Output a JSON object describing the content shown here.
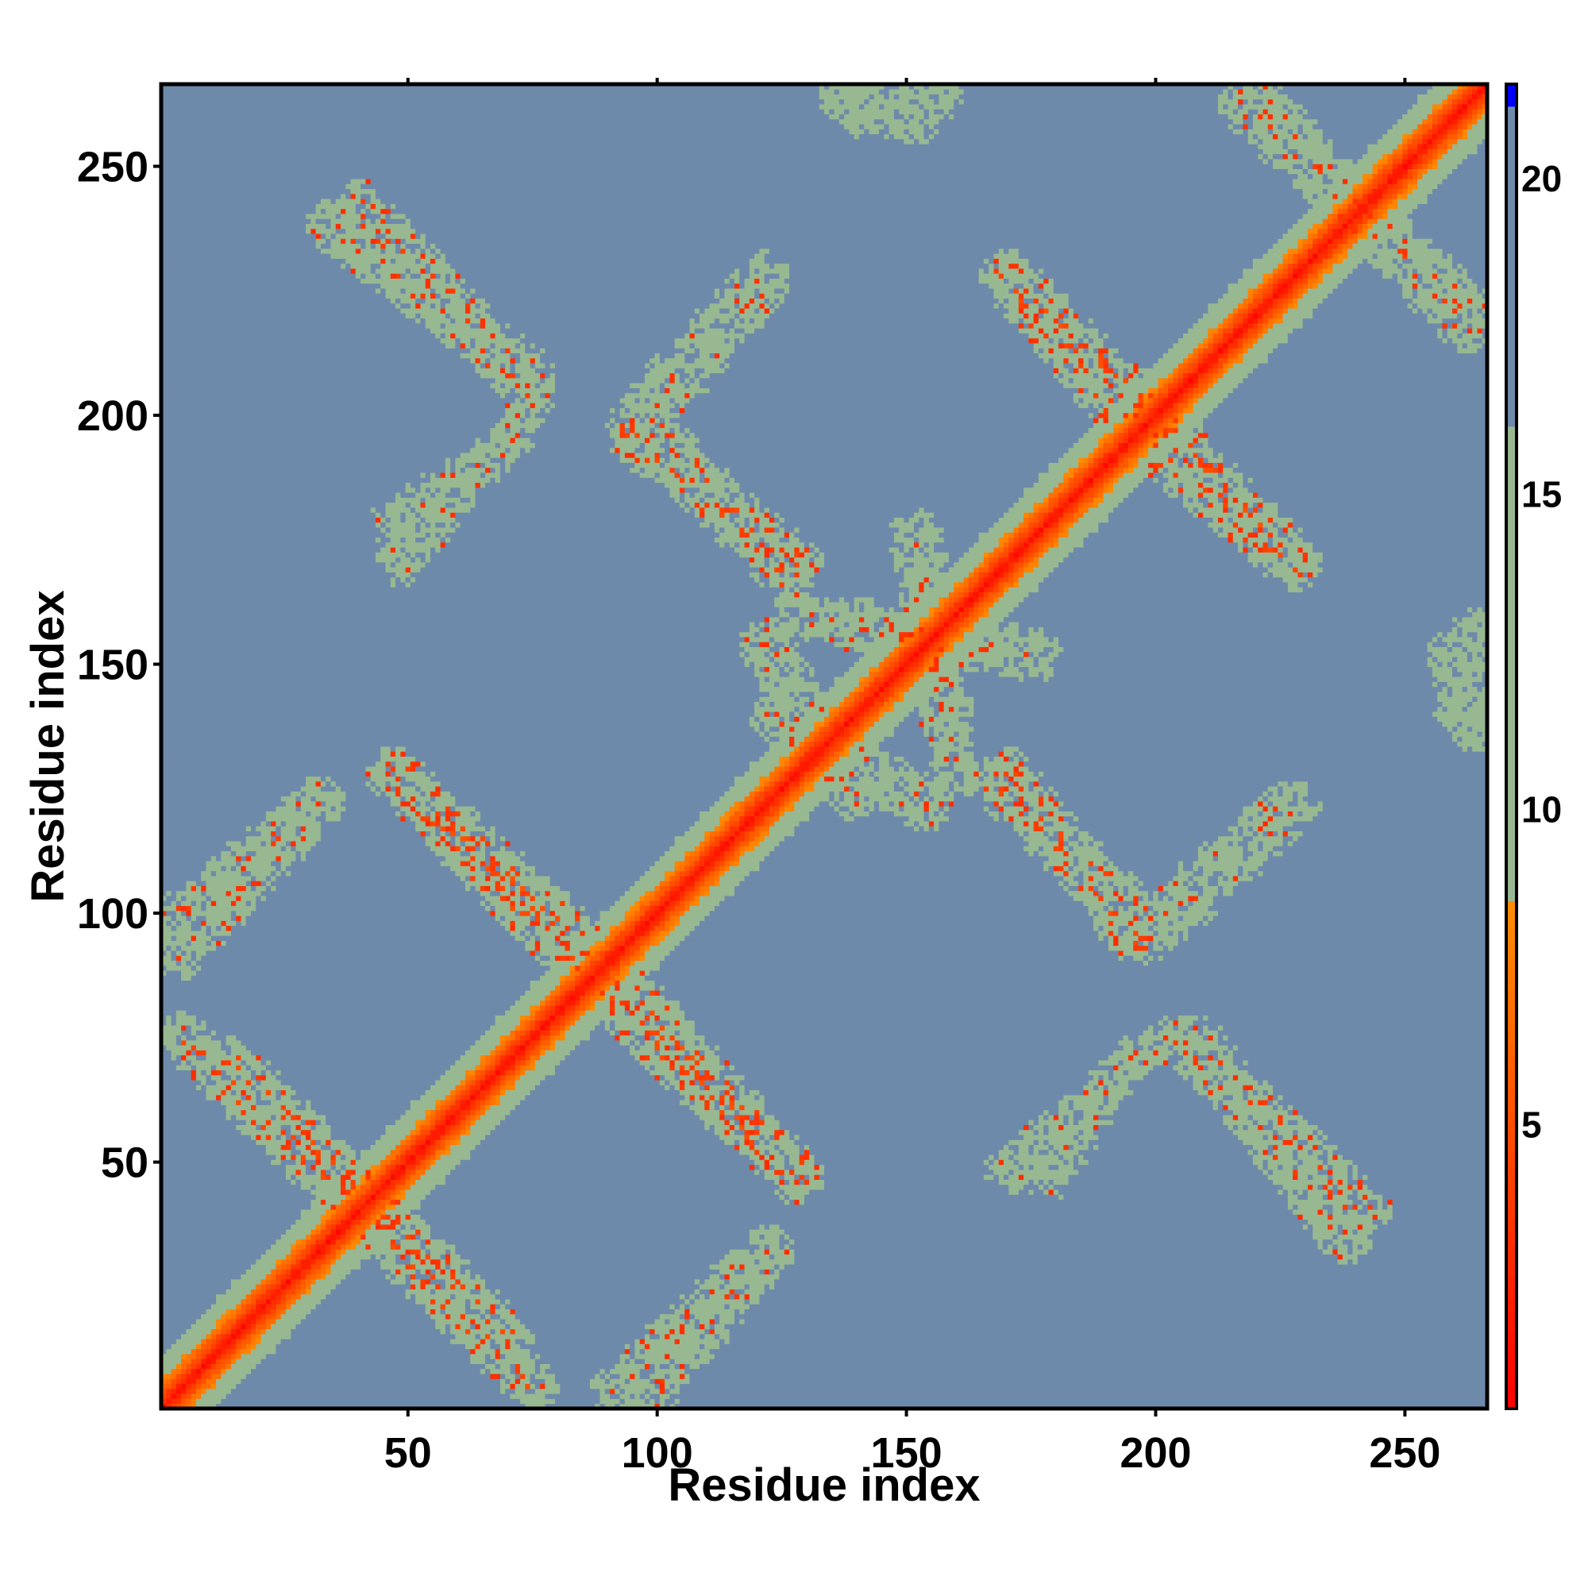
{
  "chart_data": {
    "type": "heatmap",
    "title": "",
    "xlabel": "Residue index",
    "ylabel": "Residue index",
    "xlim": [
      1,
      266
    ],
    "ylim": [
      1,
      266
    ],
    "x_ticks": [
      "50",
      "100",
      "150",
      "200",
      "250"
    ],
    "y_ticks": [
      "50",
      "100",
      "150",
      "200",
      "250"
    ],
    "colorbar": {
      "range": [
        0.5,
        21.5
      ],
      "ticks": [
        "5",
        "10",
        "15",
        "20"
      ],
      "colors": {
        "red": "#ff0000",
        "orange": "#ff8c00",
        "sage": "#98b892",
        "steel": "#6e8aaa",
        "blue": "#0000ff"
      },
      "bands": [
        {
          "from": 0.5,
          "to": 8.5,
          "scale": "red-to-orange"
        },
        {
          "from": 8.5,
          "to": 16.0,
          "scale": "sage"
        },
        {
          "from": 16.0,
          "to": 21.2,
          "scale": "steel"
        },
        {
          "from": 21.2,
          "to": 21.5,
          "scale": "blue"
        }
      ]
    },
    "background_value": 21,
    "diagonal": {
      "core_value": 1.5,
      "half_width": 12
    },
    "bands": [
      {
        "x1": 5,
        "y1": 75,
        "x2": 35,
        "y2": 45,
        "value": 11,
        "hot": 0.28
      },
      {
        "x1": 40,
        "y1": 45,
        "x2": 70,
        "y2": 15,
        "value": 10.5,
        "hot": 0.25
      },
      {
        "x1": 50,
        "y1": 125,
        "x2": 82,
        "y2": 92,
        "value": 10.5,
        "hot": 0.32
      },
      {
        "x1": 95,
        "y1": 84,
        "x2": 128,
        "y2": 47,
        "value": 10.5,
        "hot": 0.32
      },
      {
        "x1": 2,
        "y1": 97,
        "x2": 32,
        "y2": 122,
        "value": 12,
        "hot": 0.12
      },
      {
        "x1": 92,
        "y1": 4,
        "x2": 122,
        "y2": 32,
        "value": 12.5,
        "hot": 0.1
      },
      {
        "x1": 35,
        "y1": 238,
        "x2": 75,
        "y2": 208,
        "value": 12,
        "hot": 0.12
      },
      {
        "x1": 47,
        "y1": 178,
        "x2": 72,
        "y2": 196,
        "value": 13.5,
        "hot": 0.05
      },
      {
        "x1": 95,
        "y1": 196,
        "x2": 128,
        "y2": 170,
        "value": 11,
        "hot": 0.25
      },
      {
        "x1": 96,
        "y1": 200,
        "x2": 122,
        "y2": 228,
        "value": 13,
        "hot": 0.06
      },
      {
        "x1": 175,
        "y1": 224,
        "x2": 196,
        "y2": 203,
        "value": 10.5,
        "hot": 0.28
      },
      {
        "x1": 202,
        "y1": 192,
        "x2": 228,
        "y2": 170,
        "value": 11,
        "hot": 0.25
      },
      {
        "x1": 168,
        "y1": 126,
        "x2": 196,
        "y2": 100,
        "value": 11,
        "hot": 0.22
      },
      {
        "x1": 200,
        "y1": 98,
        "x2": 226,
        "y2": 122,
        "value": 13,
        "hot": 0.06
      },
      {
        "x1": 170,
        "y1": 48,
        "x2": 200,
        "y2": 74,
        "value": 13.5,
        "hot": 0.05
      },
      {
        "x1": 205,
        "y1": 75,
        "x2": 242,
        "y2": 40,
        "value": 11.5,
        "hot": 0.18
      },
      {
        "x1": 138,
        "y1": 264,
        "x2": 152,
        "y2": 260,
        "value": 12.5,
        "hot": 0.05
      },
      {
        "x1": 218,
        "y1": 262,
        "x2": 262,
        "y2": 222,
        "value": 12,
        "hot": 0.14
      },
      {
        "x1": 128,
        "y1": 160,
        "x2": 176,
        "y2": 152,
        "value": 12.5,
        "hot": 0.08
      },
      {
        "x1": 124,
        "y1": 140,
        "x2": 154,
        "y2": 122,
        "value": 12,
        "hot": 0.1
      },
      {
        "x1": 260,
        "y1": 140,
        "x2": 264,
        "y2": 158,
        "value": 14,
        "hot": 0.02
      }
    ]
  }
}
